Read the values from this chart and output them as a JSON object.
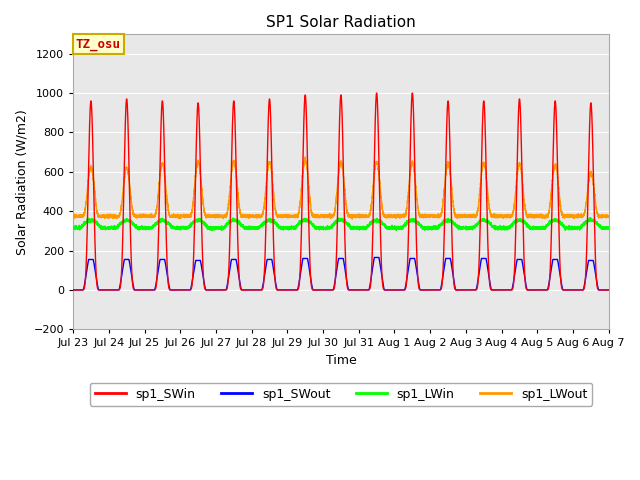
{
  "title": "SP1 Solar Radiation",
  "xlabel": "Time",
  "ylabel": "Solar Radiation (W/m2)",
  "ylim": [
    -200,
    1300
  ],
  "yticks": [
    -200,
    0,
    200,
    400,
    600,
    800,
    1000,
    1200
  ],
  "x_tick_labels": [
    "Jul 23",
    "Jul 24",
    "Jul 25",
    "Jul 26",
    "Jul 27",
    "Jul 28",
    "Jul 29",
    "Jul 30",
    "Jul 31",
    "Aug 1",
    "Aug 2",
    "Aug 3",
    "Aug 4",
    "Aug 5",
    "Aug 6",
    "Aug 7"
  ],
  "background_color": "#ffffff",
  "plot_bg_color": "#e8e8e8",
  "grid_color": "#ffffff",
  "annotation_text": "TZ_osu",
  "annotation_bg": "#ffffcc",
  "annotation_border": "#ccaa00",
  "annotation_text_color": "#cc0000",
  "colors": {
    "sp1_SWin": "#ff0000",
    "sp1_SWout": "#0000ff",
    "sp1_LWin": "#00ff00",
    "sp1_LWout": "#ff9900"
  },
  "num_days": 15,
  "SWin_peaks": [
    960,
    970,
    960,
    950,
    960,
    970,
    990,
    990,
    1000,
    1000,
    960,
    960,
    970,
    960,
    950
  ],
  "SWout_peaks": [
    155,
    155,
    155,
    150,
    155,
    155,
    160,
    160,
    165,
    160,
    160,
    160,
    155,
    155,
    150
  ],
  "LWout_peaks": [
    625,
    620,
    640,
    650,
    655,
    650,
    660,
    650,
    650,
    645,
    645,
    645,
    640,
    635,
    595
  ],
  "LWout_base": 375,
  "LWin_base": 315,
  "LWin_amplitude": 40
}
